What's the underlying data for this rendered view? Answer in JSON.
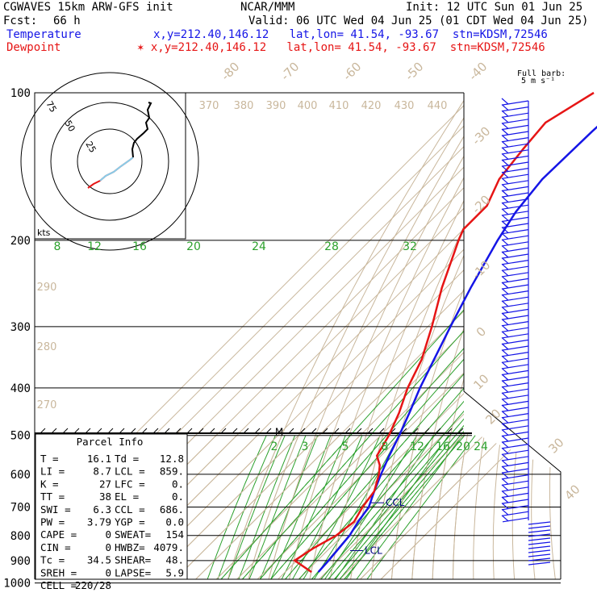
{
  "header": {
    "model": "CGWAVES 15km ARW-GFS init",
    "center": "NCAR/MMM",
    "init": "Init: 12 UTC Sun 01 Jun 25",
    "fcst_label": "Fcst:",
    "fcst_value": "66 h",
    "valid": "Valid: 06 UTC Wed 04 Jun 25 (01 CDT Wed 04 Jun 25)",
    "temp_label": "Temperature",
    "temp_loc": "x,y=212.40,146.12   lat,lon= 41.54, -93.67  stn=KDSM,72546",
    "dew_label": "Dewpoint",
    "dew_loc": "✶ x,y=212.40,146.12   lat,lon= 41.54, -93.67  stn=KDSM,72546",
    "barb_title": "Full barb:",
    "barb_units": "5 m s⁻¹"
  },
  "colors": {
    "temperature": "#1515e6",
    "dewpoint": "#e61515",
    "isotherm": "#c9b79c",
    "mixing_ratio": "#2ca02c",
    "hodograph": "#87ceeb"
  },
  "chart_data": {
    "type": "skew-t",
    "y_axis": "Pressure (hPa)",
    "pressure_labels": [
      "100",
      "200",
      "300",
      "400",
      "500",
      "600",
      "700",
      "800",
      "900",
      "1000"
    ],
    "isotherm_labels": [
      "-80",
      "-70",
      "-60",
      "-50",
      "-40",
      "-30",
      "-20",
      "-10",
      "0",
      "10",
      "20",
      "30",
      "40"
    ],
    "theta_labels": [
      "370",
      "380",
      "390",
      "400",
      "410",
      "420",
      "430",
      "440"
    ],
    "theta_low_labels": [
      "290",
      "280",
      "270"
    ],
    "mixing_ratio_upper": [
      "8",
      "12",
      "16",
      "20",
      "24",
      "28",
      "32"
    ],
    "mixing_ratio_lower": [
      "2",
      "3",
      "5",
      "8",
      "12",
      "16",
      "20",
      "24"
    ],
    "hodograph_rings": [
      "25",
      "50",
      "75"
    ],
    "hodograph_units": "kts",
    "temperature": [
      {
        "p": 100,
        "t": -63
      },
      {
        "p": 120,
        "t": -65
      },
      {
        "p": 150,
        "t": -66
      },
      {
        "p": 175,
        "t": -63
      },
      {
        "p": 200,
        "t": -58
      },
      {
        "p": 250,
        "t": -48
      },
      {
        "p": 300,
        "t": -39
      },
      {
        "p": 350,
        "t": -31
      },
      {
        "p": 400,
        "t": -24
      },
      {
        "p": 450,
        "t": -17
      },
      {
        "p": 500,
        "t": -11
      },
      {
        "p": 550,
        "t": -6
      },
      {
        "p": 600,
        "t": -1
      },
      {
        "p": 650,
        "t": 4
      },
      {
        "p": 700,
        "t": 9
      },
      {
        "p": 750,
        "t": 11
      },
      {
        "p": 800,
        "t": 13.5
      },
      {
        "p": 850,
        "t": 14.5
      },
      {
        "p": 900,
        "t": 15.5
      },
      {
        "p": 950,
        "t": 16.1
      }
    ],
    "dewpoint": [
      {
        "p": 100,
        "td": -83
      },
      {
        "p": 115,
        "td": -92
      },
      {
        "p": 130,
        "td": -90
      },
      {
        "p": 150,
        "td": -87
      },
      {
        "p": 170,
        "td": -80
      },
      {
        "p": 190,
        "td": -80
      },
      {
        "p": 200,
        "td": -77
      },
      {
        "p": 250,
        "td": -62
      },
      {
        "p": 300,
        "td": -48
      },
      {
        "p": 350,
        "td": -37
      },
      {
        "p": 400,
        "td": -30
      },
      {
        "p": 450,
        "td": -22
      },
      {
        "p": 500,
        "td": -16
      },
      {
        "p": 550,
        "td": -12
      },
      {
        "p": 575,
        "td": -6
      },
      {
        "p": 600,
        "td": -2
      },
      {
        "p": 650,
        "td": 4
      },
      {
        "p": 700,
        "td": 6
      },
      {
        "p": 750,
        "td": 9
      },
      {
        "p": 800,
        "td": 7
      },
      {
        "p": 850,
        "td": 2
      },
      {
        "p": 900,
        "td": -1
      },
      {
        "p": 950,
        "td": 12.8
      }
    ],
    "annotations": [
      {
        "label": "CCL",
        "p": 686
      },
      {
        "label": "LCL",
        "p": 859
      },
      {
        "label": "M",
        "p": 500
      }
    ]
  },
  "parcel_info": {
    "title": "Parcel Info",
    "rows": [
      [
        "T  =",
        "16.1",
        "Td =",
        "12.8"
      ],
      [
        "LI =",
        "8.7",
        "LCL =",
        "859."
      ],
      [
        "K  =",
        "27",
        "LFC =",
        "0."
      ],
      [
        "TT =",
        "38",
        "EL  =",
        "0."
      ],
      [
        "SWI =",
        "6.3",
        "CCL =",
        "686."
      ],
      [
        "PW =",
        "3.79",
        "YGP =",
        "0.0"
      ],
      [
        "CAPE =",
        "0",
        "SWEAT=",
        "154"
      ],
      [
        "CIN =",
        "0",
        "HWBZ=",
        "4079."
      ],
      [
        "Tc =",
        "34.5",
        "SHEAR=",
        "48."
      ],
      [
        "SREH =",
        "0",
        "LAPSE=",
        "5.9"
      ],
      [
        "CELL =",
        "220/28",
        "",
        ""
      ]
    ]
  }
}
